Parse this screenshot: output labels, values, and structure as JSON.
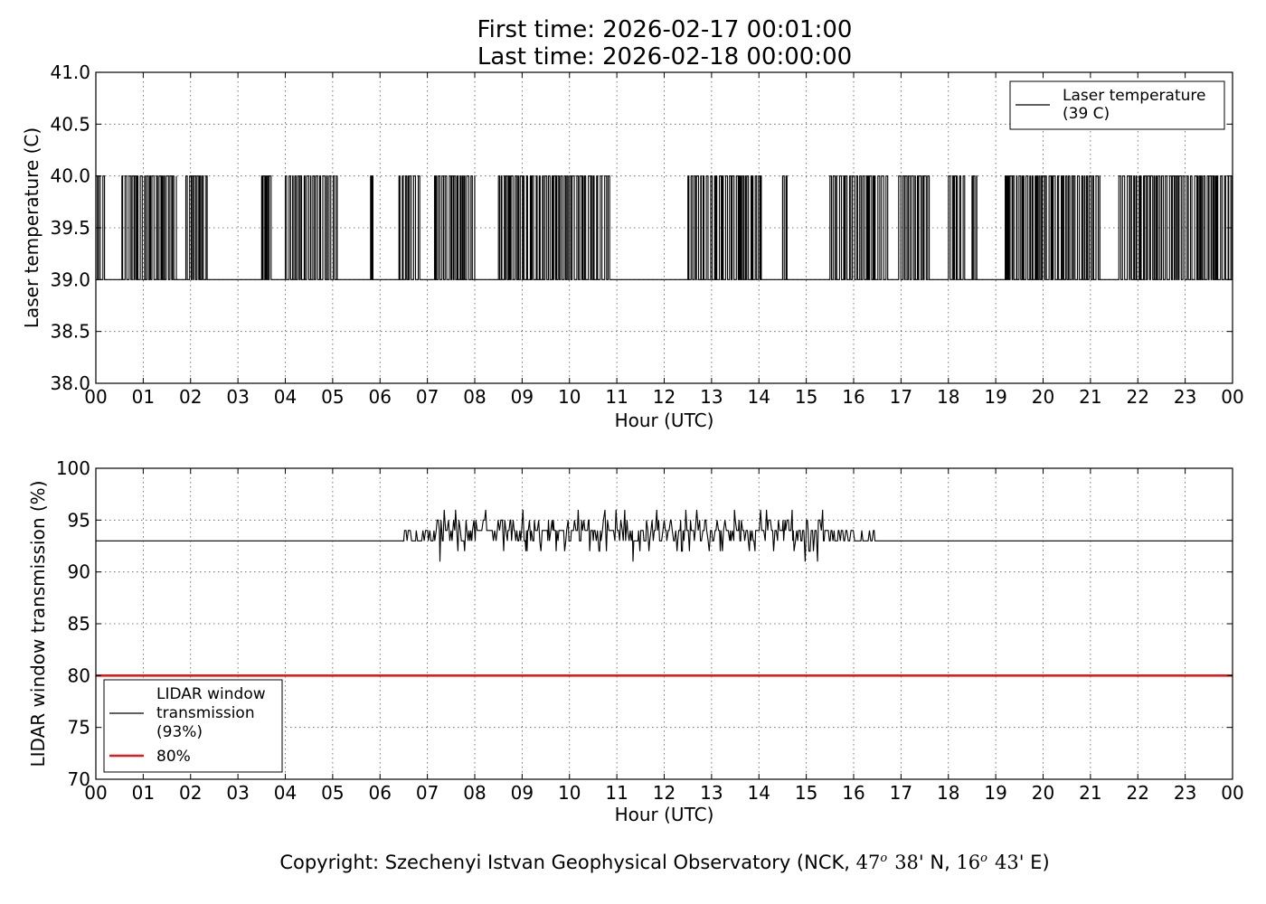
{
  "title": {
    "line1": "First time: 2026-02-17 00:01:00",
    "line2": "Last time: 2026-02-18 00:00:00"
  },
  "copyright": {
    "prefix": "Copyright: Szechenyi Istvan Geophysical Observatory (NCK, ",
    "lat_deg": "47",
    "lat_sup": "o",
    "lat_min": "38'",
    "lat_hemi": " N, ",
    "lon_deg": "16",
    "lon_sup": "o",
    "lon_min": "43'",
    "lon_hemi": " E)"
  },
  "colors": {
    "series": "#000000",
    "threshold": "#e41a1c",
    "grid": "#555555"
  },
  "chart_data": [
    {
      "type": "line",
      "xlabel": "Hour (UTC)",
      "ylabel": "Laser temperature (C)",
      "xlim": [
        0,
        24
      ],
      "ylim": [
        38.0,
        41.0
      ],
      "x_ticks": [
        "00",
        "01",
        "02",
        "03",
        "04",
        "05",
        "06",
        "07",
        "08",
        "09",
        "10",
        "11",
        "12",
        "13",
        "14",
        "15",
        "16",
        "17",
        "18",
        "19",
        "20",
        "21",
        "22",
        "23",
        "00"
      ],
      "y_ticks": [
        "38.0",
        "38.5",
        "39.0",
        "39.5",
        "40.0",
        "40.5",
        "41.0"
      ],
      "grid": true,
      "legend_position": "top-right",
      "series": [
        {
          "name_line1": "Laser temperature",
          "name_line2": "(39 C)",
          "color": "#000000",
          "baseline": 39.0,
          "high_value": 40.0,
          "high_bursts_hours": [
            [
              0.0,
              0.2
            ],
            [
              0.55,
              1.7
            ],
            [
              1.9,
              2.35
            ],
            [
              3.5,
              3.7
            ],
            [
              4.0,
              5.15
            ],
            [
              5.8,
              5.85
            ],
            [
              6.4,
              6.85
            ],
            [
              7.15,
              8.0
            ],
            [
              8.5,
              10.9
            ],
            [
              12.5,
              14.05
            ],
            [
              14.5,
              14.6
            ],
            [
              15.5,
              16.75
            ],
            [
              16.95,
              17.6
            ],
            [
              18.0,
              18.35
            ],
            [
              18.5,
              18.6
            ],
            [
              19.2,
              21.2
            ],
            [
              21.6,
              23.15
            ],
            [
              23.2,
              24.0
            ]
          ],
          "density": "dense switching between 39.0 and 40.0 within bursts"
        }
      ]
    },
    {
      "type": "line",
      "xlabel": "Hour (UTC)",
      "ylabel": "LIDAR window transmission (%)",
      "xlim": [
        0,
        24
      ],
      "ylim": [
        70,
        100
      ],
      "x_ticks": [
        "00",
        "01",
        "02",
        "03",
        "04",
        "05",
        "06",
        "07",
        "08",
        "09",
        "10",
        "11",
        "12",
        "13",
        "14",
        "15",
        "16",
        "17",
        "18",
        "19",
        "20",
        "21",
        "22",
        "23",
        "00"
      ],
      "y_ticks": [
        "70",
        "75",
        "80",
        "85",
        "90",
        "95",
        "100"
      ],
      "grid": true,
      "legend_position": "bottom-left",
      "series": [
        {
          "name_line1": "LIDAR window",
          "name_line2": "transmission",
          "name_line3": "(93%)",
          "color": "#000000",
          "baseline": 93,
          "active_start_hour": 6.5,
          "active_end_hour": 16.45,
          "active_range": [
            91,
            96
          ],
          "typical_active_level": 94
        },
        {
          "name": "80%",
          "color": "#e41a1c",
          "value": 80
        }
      ]
    }
  ]
}
